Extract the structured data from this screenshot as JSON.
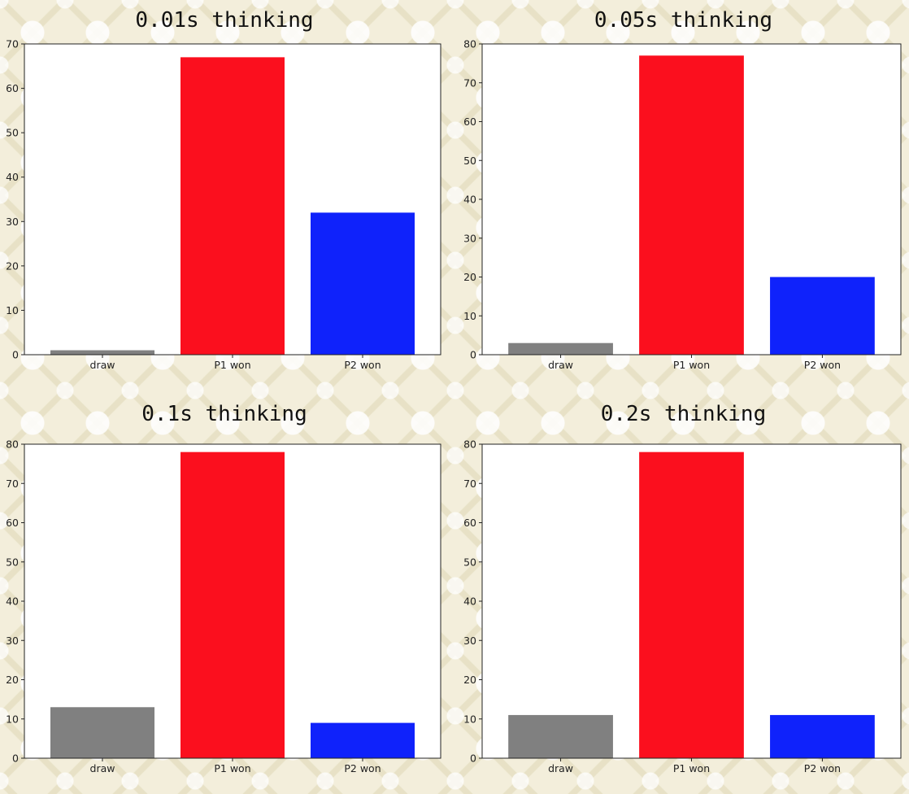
{
  "chart_data": [
    {
      "type": "bar",
      "title": "0.01s thinking",
      "categories": [
        "draw",
        "P1 won",
        "P2 won"
      ],
      "values": [
        1,
        67,
        32
      ],
      "colors": [
        "#808080",
        "#fb0f1e",
        "#0f22fb"
      ],
      "ylim": [
        0,
        70
      ],
      "yticks": [
        0,
        10,
        20,
        30,
        40,
        50,
        60,
        70
      ],
      "xlabel": "",
      "ylabel": "",
      "grid": false
    },
    {
      "type": "bar",
      "title": "0.05s thinking",
      "categories": [
        "draw",
        "P1 won",
        "P2 won"
      ],
      "values": [
        3,
        77,
        20
      ],
      "colors": [
        "#808080",
        "#fb0f1e",
        "#0f22fb"
      ],
      "ylim": [
        0,
        80
      ],
      "yticks": [
        0,
        10,
        20,
        30,
        40,
        50,
        60,
        70,
        80
      ],
      "xlabel": "",
      "ylabel": "",
      "grid": false
    },
    {
      "type": "bar",
      "title": "0.1s thinking",
      "categories": [
        "draw",
        "P1 won",
        "P2 won"
      ],
      "values": [
        13,
        78,
        9
      ],
      "colors": [
        "#808080",
        "#fb0f1e",
        "#0f22fb"
      ],
      "ylim": [
        0,
        80
      ],
      "yticks": [
        0,
        10,
        20,
        30,
        40,
        50,
        60,
        70,
        80
      ],
      "xlabel": "",
      "ylabel": "",
      "grid": false
    },
    {
      "type": "bar",
      "title": "0.2s thinking",
      "categories": [
        "draw",
        "P1 won",
        "P2 won"
      ],
      "values": [
        11,
        78,
        11
      ],
      "colors": [
        "#808080",
        "#fb0f1e",
        "#0f22fb"
      ],
      "ylim": [
        0,
        80
      ],
      "yticks": [
        0,
        10,
        20,
        30,
        40,
        50,
        60,
        70,
        80
      ],
      "xlabel": "",
      "ylabel": "",
      "grid": false
    }
  ]
}
